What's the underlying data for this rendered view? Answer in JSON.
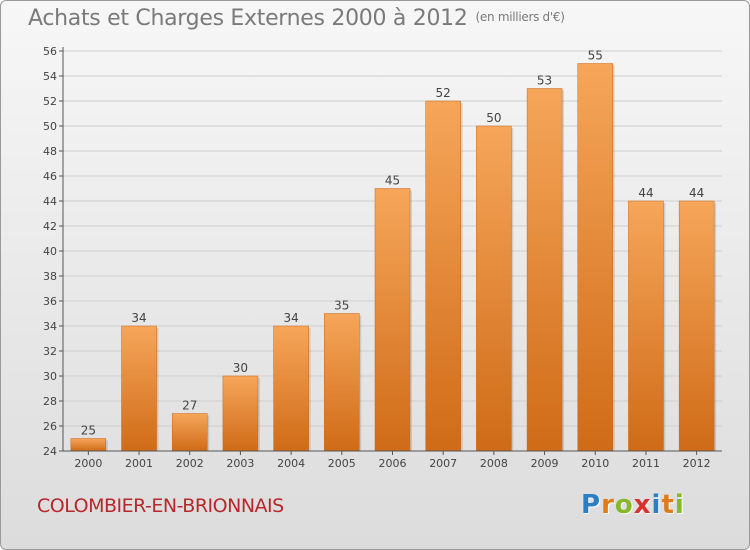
{
  "header": {
    "title": "Achats et Charges Externes 2000 à 2012",
    "unit": "(en milliers d'€)"
  },
  "footer": {
    "commune": "COLOMBIER-EN-BRIONNAIS",
    "logo_letters": [
      "P",
      "r",
      "o",
      "x",
      "i",
      "t",
      "i"
    ],
    "logo_colors": [
      "#2a7fc4",
      "#e07b1c",
      "#86b82a",
      "#d9312b",
      "#2a7fc4",
      "#e07b1c",
      "#86b82a"
    ]
  },
  "colors": {
    "bar_top": "#f6a65a",
    "bar_bottom": "#cf6b17",
    "grid": "#cfcfcf",
    "axis": "#555555"
  },
  "chart_data": {
    "type": "bar",
    "categories": [
      "2000",
      "2001",
      "2002",
      "2003",
      "2004",
      "2005",
      "2006",
      "2007",
      "2008",
      "2009",
      "2010",
      "2011",
      "2012"
    ],
    "values": [
      25,
      34,
      27,
      30,
      34,
      35,
      45,
      52,
      50,
      53,
      55,
      44,
      44
    ],
    "title": "Achats et Charges Externes 2000 à 2012",
    "ylabel": "",
    "ylim": [
      24,
      56
    ],
    "yticks": [
      24,
      26,
      28,
      30,
      32,
      34,
      36,
      38,
      40,
      42,
      44,
      46,
      48,
      50,
      52,
      54,
      56
    ],
    "grid": true,
    "data_labels": true
  }
}
